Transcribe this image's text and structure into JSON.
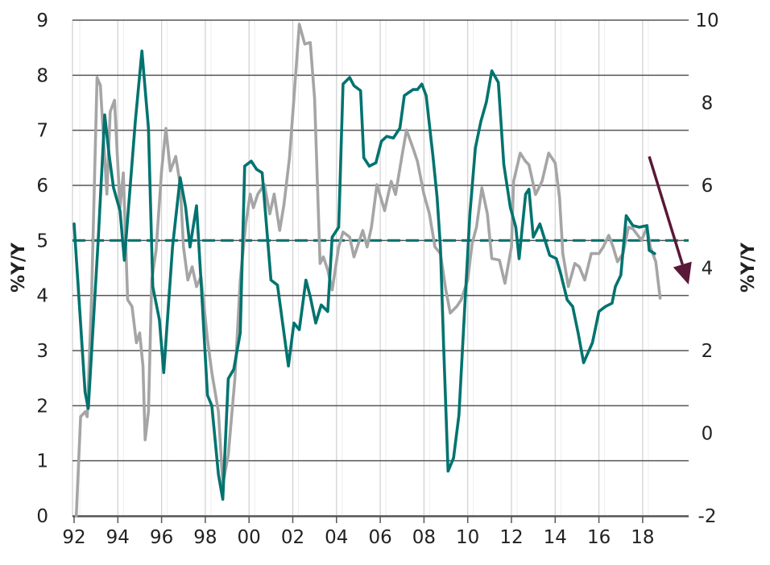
{
  "chart_data": {
    "type": "line",
    "title": "",
    "xlabel": "",
    "ylabel_left": "%Y/Y",
    "ylabel_right": "%Y/Y",
    "xlim": [
      1992,
      2020.1
    ],
    "ylim_left": [
      0,
      9
    ],
    "ylim_right": [
      -2,
      10
    ],
    "x_ticks": [
      1992,
      1994,
      1996,
      1998,
      2000,
      2002,
      2004,
      2006,
      2008,
      2010,
      2012,
      2014,
      2016,
      2018
    ],
    "x_tick_labels": [
      "92",
      "94",
      "96",
      "98",
      "00",
      "02",
      "04",
      "06",
      "08",
      "10",
      "12",
      "14",
      "16",
      "18"
    ],
    "y_ticks_left": [
      "0",
      "1",
      "2",
      "3",
      "4",
      "5",
      "6",
      "7",
      "8",
      "9"
    ],
    "y_ticks_right": [
      "-2",
      "0",
      "2",
      "4",
      "6",
      "8",
      "10"
    ],
    "grid": true,
    "colors": {
      "teal": "#00736f",
      "grey": "#a5a5a5",
      "arrow": "#5a1838",
      "grid": "#555555",
      "vgrid": "#cfcfcf"
    },
    "reference_line": {
      "axis": "left",
      "value": 5,
      "style": "dashed",
      "color": "#00736f"
    },
    "annotation_arrow": {
      "axis": "right",
      "from": [
        2018.3,
        6.7
      ],
      "to": [
        2020.1,
        3.6
      ],
      "color": "#5a1838"
    },
    "series": [
      {
        "axis": "left",
        "color": "#00736f",
        "points": [
          [
            1992.0,
            5.3
          ],
          [
            1992.5,
            2.25
          ],
          [
            1992.65,
            1.95
          ],
          [
            1993.1,
            5.0
          ],
          [
            1993.4,
            7.28
          ],
          [
            1993.6,
            6.56
          ],
          [
            1993.8,
            5.96
          ],
          [
            1994.1,
            5.54
          ],
          [
            1994.3,
            4.64
          ],
          [
            1994.8,
            7.16
          ],
          [
            1995.1,
            8.44
          ],
          [
            1995.4,
            7.04
          ],
          [
            1995.6,
            4.16
          ],
          [
            1995.9,
            3.56
          ],
          [
            1996.1,
            2.6
          ],
          [
            1996.5,
            4.88
          ],
          [
            1996.85,
            6.14
          ],
          [
            1997.1,
            5.6
          ],
          [
            1997.3,
            4.88
          ],
          [
            1997.6,
            5.63
          ],
          [
            1997.8,
            4.28
          ],
          [
            1998.1,
            2.19
          ],
          [
            1998.3,
            2.0
          ],
          [
            1998.6,
            0.75
          ],
          [
            1998.8,
            0.3
          ],
          [
            1999.05,
            2.49
          ],
          [
            1999.3,
            2.66
          ],
          [
            1999.6,
            3.32
          ],
          [
            1999.8,
            6.35
          ],
          [
            2000.1,
            6.44
          ],
          [
            2000.35,
            6.29
          ],
          [
            2000.6,
            6.23
          ],
          [
            2001.0,
            4.28
          ],
          [
            2001.3,
            4.19
          ],
          [
            2001.8,
            2.72
          ],
          [
            2002.05,
            3.5
          ],
          [
            2002.3,
            3.38
          ],
          [
            2002.6,
            4.28
          ],
          [
            2002.8,
            3.98
          ],
          [
            2003.05,
            3.5
          ],
          [
            2003.3,
            3.83
          ],
          [
            2003.6,
            3.71
          ],
          [
            2003.8,
            5.06
          ],
          [
            2004.1,
            5.24
          ],
          [
            2004.3,
            7.84
          ],
          [
            2004.6,
            7.96
          ],
          [
            2004.8,
            7.81
          ],
          [
            2005.1,
            7.72
          ],
          [
            2005.25,
            6.5
          ],
          [
            2005.5,
            6.35
          ],
          [
            2005.8,
            6.41
          ],
          [
            2006.05,
            6.8
          ],
          [
            2006.3,
            6.89
          ],
          [
            2006.6,
            6.86
          ],
          [
            2006.9,
            7.04
          ],
          [
            2007.1,
            7.63
          ],
          [
            2007.5,
            7.74
          ],
          [
            2007.7,
            7.74
          ],
          [
            2007.9,
            7.84
          ],
          [
            2008.1,
            7.63
          ],
          [
            2008.4,
            6.56
          ],
          [
            2008.6,
            5.78
          ],
          [
            2008.75,
            4.88
          ],
          [
            2008.9,
            3.08
          ],
          [
            2009.1,
            0.81
          ],
          [
            2009.35,
            1.05
          ],
          [
            2009.6,
            1.83
          ],
          [
            2009.85,
            3.68
          ],
          [
            2010.1,
            5.48
          ],
          [
            2010.35,
            6.68
          ],
          [
            2010.6,
            7.16
          ],
          [
            2010.85,
            7.51
          ],
          [
            2011.1,
            8.08
          ],
          [
            2011.4,
            7.87
          ],
          [
            2011.65,
            6.38
          ],
          [
            2011.95,
            5.6
          ],
          [
            2012.2,
            5.24
          ],
          [
            2012.35,
            4.67
          ],
          [
            2012.65,
            5.84
          ],
          [
            2012.8,
            5.93
          ],
          [
            2013.0,
            5.06
          ],
          [
            2013.3,
            5.3
          ],
          [
            2013.75,
            4.73
          ],
          [
            2014.05,
            4.67
          ],
          [
            2014.25,
            4.4
          ],
          [
            2014.55,
            3.92
          ],
          [
            2014.8,
            3.8
          ],
          [
            2015.05,
            3.32
          ],
          [
            2015.3,
            2.78
          ],
          [
            2015.7,
            3.14
          ],
          [
            2016.0,
            3.71
          ],
          [
            2016.3,
            3.8
          ],
          [
            2016.6,
            3.86
          ],
          [
            2016.75,
            4.16
          ],
          [
            2017.0,
            4.37
          ],
          [
            2017.25,
            5.45
          ],
          [
            2017.55,
            5.27
          ],
          [
            2017.85,
            5.24
          ],
          [
            2018.2,
            5.27
          ],
          [
            2018.3,
            4.82
          ],
          [
            2018.55,
            4.76
          ]
        ]
      },
      {
        "axis": "right",
        "color": "#a5a5a5",
        "points": [
          [
            1992.1,
            -2.0
          ],
          [
            1992.3,
            0.4
          ],
          [
            1992.5,
            0.52
          ],
          [
            1992.6,
            0.4
          ],
          [
            1992.8,
            3.31
          ],
          [
            1993.05,
            8.61
          ],
          [
            1993.2,
            8.42
          ],
          [
            1993.5,
            5.79
          ],
          [
            1993.65,
            7.78
          ],
          [
            1993.85,
            8.06
          ],
          [
            1994.1,
            5.46
          ],
          [
            1994.25,
            6.3
          ],
          [
            1994.45,
            3.23
          ],
          [
            1994.65,
            3.07
          ],
          [
            1994.85,
            2.19
          ],
          [
            1995.0,
            2.43
          ],
          [
            1995.15,
            1.63
          ],
          [
            1995.25,
            -0.16
          ],
          [
            1995.4,
            0.52
          ],
          [
            1995.55,
            3.71
          ],
          [
            1995.75,
            4.43
          ],
          [
            1996.0,
            6.35
          ],
          [
            1996.2,
            7.38
          ],
          [
            1996.4,
            6.35
          ],
          [
            1996.65,
            6.7
          ],
          [
            1996.85,
            6.02
          ],
          [
            1997.0,
            4.51
          ],
          [
            1997.2,
            3.71
          ],
          [
            1997.4,
            4.03
          ],
          [
            1997.6,
            3.55
          ],
          [
            1997.8,
            3.79
          ],
          [
            1998.1,
            2.27
          ],
          [
            1998.3,
            1.47
          ],
          [
            1998.6,
            0.52
          ],
          [
            1998.8,
            -1.24
          ],
          [
            1999.05,
            -0.53
          ],
          [
            1999.35,
            1.32
          ],
          [
            1999.6,
            3.71
          ],
          [
            1999.85,
            5.07
          ],
          [
            2000.05,
            5.79
          ],
          [
            2000.2,
            5.46
          ],
          [
            2000.4,
            5.79
          ],
          [
            2000.7,
            6.02
          ],
          [
            2000.95,
            5.31
          ],
          [
            2001.15,
            5.79
          ],
          [
            2001.4,
            4.91
          ],
          [
            2001.6,
            5.54
          ],
          [
            2001.85,
            6.67
          ],
          [
            2002.05,
            8.1
          ],
          [
            2002.3,
            9.9
          ],
          [
            2002.55,
            9.42
          ],
          [
            2002.8,
            9.46
          ],
          [
            2003.0,
            8.1
          ],
          [
            2003.25,
            4.11
          ],
          [
            2003.4,
            4.27
          ],
          [
            2003.6,
            3.95
          ],
          [
            2003.8,
            3.47
          ],
          [
            2004.1,
            4.51
          ],
          [
            2004.3,
            4.87
          ],
          [
            2004.6,
            4.75
          ],
          [
            2004.8,
            4.27
          ],
          [
            2005.2,
            4.91
          ],
          [
            2005.4,
            4.51
          ],
          [
            2005.6,
            4.99
          ],
          [
            2005.85,
            6.02
          ],
          [
            2006.2,
            5.39
          ],
          [
            2006.5,
            6.1
          ],
          [
            2006.7,
            5.78
          ],
          [
            2007.0,
            6.74
          ],
          [
            2007.2,
            7.34
          ],
          [
            2007.5,
            6.9
          ],
          [
            2007.7,
            6.58
          ],
          [
            2008.0,
            5.78
          ],
          [
            2008.25,
            5.31
          ],
          [
            2008.5,
            4.51
          ],
          [
            2008.75,
            4.35
          ],
          [
            2009.0,
            3.47
          ],
          [
            2009.2,
            2.91
          ],
          [
            2009.5,
            3.07
          ],
          [
            2009.7,
            3.23
          ],
          [
            2010.0,
            3.71
          ],
          [
            2010.2,
            4.59
          ],
          [
            2010.4,
            4.99
          ],
          [
            2010.65,
            5.94
          ],
          [
            2010.9,
            5.31
          ],
          [
            2011.1,
            4.23
          ],
          [
            2011.45,
            4.19
          ],
          [
            2011.7,
            3.63
          ],
          [
            2012.0,
            4.51
          ],
          [
            2012.1,
            6.1
          ],
          [
            2012.4,
            6.78
          ],
          [
            2012.65,
            6.58
          ],
          [
            2012.8,
            6.5
          ],
          [
            2013.1,
            5.78
          ],
          [
            2013.4,
            6.1
          ],
          [
            2013.7,
            6.78
          ],
          [
            2014.0,
            6.54
          ],
          [
            2014.2,
            5.7
          ],
          [
            2014.35,
            4.35
          ],
          [
            2014.6,
            3.55
          ],
          [
            2014.9,
            4.11
          ],
          [
            2015.1,
            4.03
          ],
          [
            2015.35,
            3.71
          ],
          [
            2015.65,
            4.35
          ],
          [
            2016.0,
            4.35
          ],
          [
            2016.2,
            4.51
          ],
          [
            2016.45,
            4.79
          ],
          [
            2016.65,
            4.51
          ],
          [
            2016.85,
            4.15
          ],
          [
            2017.1,
            4.35
          ],
          [
            2017.35,
            4.99
          ],
          [
            2017.55,
            4.95
          ],
          [
            2017.95,
            4.67
          ],
          [
            2018.2,
            4.99
          ],
          [
            2018.35,
            4.51
          ],
          [
            2018.6,
            4.15
          ],
          [
            2018.8,
            3.27
          ]
        ]
      }
    ]
  }
}
